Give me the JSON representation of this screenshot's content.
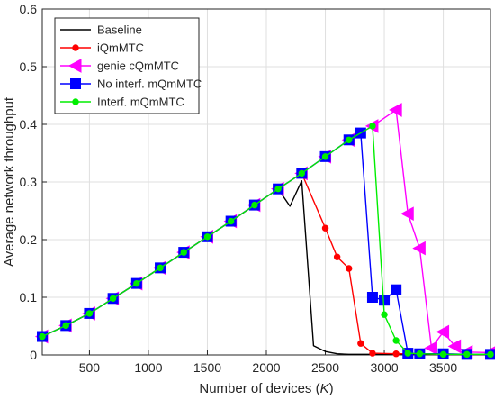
{
  "chart_data": {
    "type": "line",
    "title": "",
    "xlabel": "Number of devices",
    "xlabel_var": "K",
    "ylabel": "Average network throughput",
    "xlim": [
      100,
      3900
    ],
    "ylim": [
      0,
      0.6
    ],
    "xticks": [
      500,
      1000,
      1500,
      2000,
      2500,
      3000,
      3500
    ],
    "yticks": [
      0,
      0.1,
      0.2,
      0.3,
      0.4,
      0.5,
      0.6
    ],
    "grid": true,
    "legend_position": "top-left",
    "series": [
      {
        "name": "Baseline",
        "color": "#000000",
        "marker": "none",
        "x": [
          100,
          300,
          500,
          700,
          900,
          1100,
          1300,
          1500,
          1700,
          1900,
          2100,
          2200,
          2300,
          2400,
          2500,
          2600,
          2700,
          2800,
          2900,
          3000,
          3100,
          3300,
          3500,
          3700,
          3900
        ],
        "y": [
          0.032,
          0.051,
          0.072,
          0.098,
          0.124,
          0.151,
          0.178,
          0.205,
          0.232,
          0.26,
          0.288,
          0.258,
          0.302,
          0.016,
          0.006,
          0.002,
          0.001,
          0.001,
          0.001,
          0.001,
          0.001,
          0.001,
          0.001,
          0.001,
          0.001
        ]
      },
      {
        "name": "iQmMTC",
        "color": "#ff0000",
        "marker": "dot",
        "x": [
          100,
          300,
          500,
          700,
          900,
          1100,
          1300,
          1500,
          1700,
          1900,
          2100,
          2300,
          2500,
          2600,
          2700,
          2800,
          2900,
          3100,
          3300,
          3500,
          3700,
          3900
        ],
        "y": [
          0.032,
          0.051,
          0.072,
          0.098,
          0.124,
          0.151,
          0.178,
          0.205,
          0.232,
          0.26,
          0.288,
          0.315,
          0.22,
          0.17,
          0.15,
          0.02,
          0.003,
          0.002,
          0.002,
          0.001,
          0.001,
          0.001
        ]
      },
      {
        "name": "genie cQmMTC",
        "color": "#ff00ff",
        "marker": "triangle-left",
        "x": [
          100,
          300,
          500,
          700,
          900,
          1100,
          1300,
          1500,
          1700,
          1900,
          2100,
          2300,
          2500,
          2700,
          2900,
          3100,
          3200,
          3300,
          3400,
          3500,
          3600,
          3700,
          3900
        ],
        "y": [
          0.032,
          0.051,
          0.072,
          0.098,
          0.124,
          0.151,
          0.178,
          0.205,
          0.232,
          0.26,
          0.288,
          0.315,
          0.344,
          0.373,
          0.397,
          0.425,
          0.245,
          0.185,
          0.012,
          0.04,
          0.015,
          0.005,
          0.004
        ]
      },
      {
        "name": "No interf. mQmMTC",
        "color": "#0000ff",
        "marker": "square",
        "x": [
          100,
          300,
          500,
          700,
          900,
          1100,
          1300,
          1500,
          1700,
          1900,
          2100,
          2300,
          2500,
          2700,
          2800,
          2900,
          3000,
          3100,
          3200,
          3300,
          3500,
          3700,
          3900
        ],
        "y": [
          0.032,
          0.051,
          0.072,
          0.098,
          0.124,
          0.151,
          0.178,
          0.205,
          0.232,
          0.26,
          0.288,
          0.315,
          0.344,
          0.373,
          0.385,
          0.1,
          0.095,
          0.113,
          0.003,
          0.002,
          0.002,
          0.001,
          0.001
        ]
      },
      {
        "name": "Interf. mQmMTC",
        "color": "#00ee00",
        "marker": "dot",
        "x": [
          100,
          300,
          500,
          700,
          900,
          1100,
          1300,
          1500,
          1700,
          1900,
          2100,
          2300,
          2500,
          2700,
          2900,
          3000,
          3100,
          3200,
          3300,
          3500,
          3700,
          3900
        ],
        "y": [
          0.032,
          0.051,
          0.072,
          0.098,
          0.124,
          0.151,
          0.178,
          0.205,
          0.232,
          0.26,
          0.288,
          0.315,
          0.344,
          0.373,
          0.397,
          0.07,
          0.025,
          0.003,
          0.002,
          0.001,
          0.001,
          0.001
        ]
      }
    ]
  }
}
